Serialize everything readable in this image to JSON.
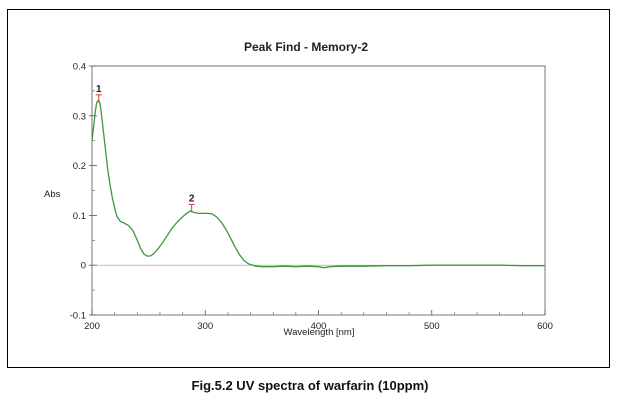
{
  "caption": "Fig.5.2 UV spectra of warfarin (10ppm)",
  "chart_data": {
    "type": "line",
    "title": "Peak Find - Memory-2",
    "xlabel": "Wavelength [nm]",
    "ylabel": "Abs",
    "xlim": [
      200,
      600
    ],
    "ylim": [
      -0.1,
      0.4
    ],
    "x_ticks": [
      200,
      300,
      400,
      500,
      600
    ],
    "y_ticks": [
      -0.1,
      0,
      0.1,
      0.2,
      0.3,
      0.4
    ],
    "x_tick_labels": [
      "200",
      "300",
      "400",
      "500",
      "600"
    ],
    "y_tick_labels": [
      "-0.1",
      "0",
      "0.1",
      "0.2",
      "0.3",
      "0.4"
    ],
    "grid": false,
    "line_color": "#3a9a3a",
    "baseline_color": "#999999",
    "peak_color": "#d04030",
    "series": [
      {
        "x": [
          200,
          201,
          202,
          203,
          204,
          205,
          206,
          207,
          208,
          209,
          210,
          212,
          214,
          216,
          218,
          220,
          222,
          225,
          228,
          232,
          236,
          240,
          243,
          246,
          249,
          252,
          255,
          258,
          262,
          266,
          270,
          275,
          280,
          284,
          287,
          290,
          294,
          298,
          302,
          306,
          310,
          314,
          318,
          322,
          326,
          330,
          334,
          338,
          342,
          345,
          350,
          360,
          370,
          380,
          390,
          400,
          405,
          410,
          420,
          440,
          460,
          480,
          500,
          520,
          540,
          560,
          580,
          600
        ],
        "y": [
          0.25,
          0.27,
          0.29,
          0.31,
          0.325,
          0.33,
          0.33,
          0.325,
          0.31,
          0.29,
          0.27,
          0.23,
          0.19,
          0.16,
          0.135,
          0.115,
          0.098,
          0.088,
          0.085,
          0.08,
          0.07,
          0.05,
          0.033,
          0.022,
          0.018,
          0.019,
          0.024,
          0.032,
          0.044,
          0.058,
          0.072,
          0.086,
          0.097,
          0.105,
          0.109,
          0.106,
          0.104,
          0.104,
          0.104,
          0.103,
          0.097,
          0.087,
          0.073,
          0.056,
          0.038,
          0.022,
          0.01,
          0.003,
          0.0,
          -0.002,
          -0.003,
          -0.003,
          -0.002,
          -0.003,
          -0.002,
          -0.003,
          -0.005,
          -0.003,
          -0.002,
          -0.002,
          -0.001,
          -0.001,
          0.0,
          0.0,
          0.0,
          0.0,
          -0.001,
          -0.001
        ]
      }
    ],
    "peaks": [
      {
        "label": "1",
        "x": 206,
        "y": 0.33
      },
      {
        "label": "2",
        "x": 288,
        "y": 0.11
      }
    ]
  }
}
